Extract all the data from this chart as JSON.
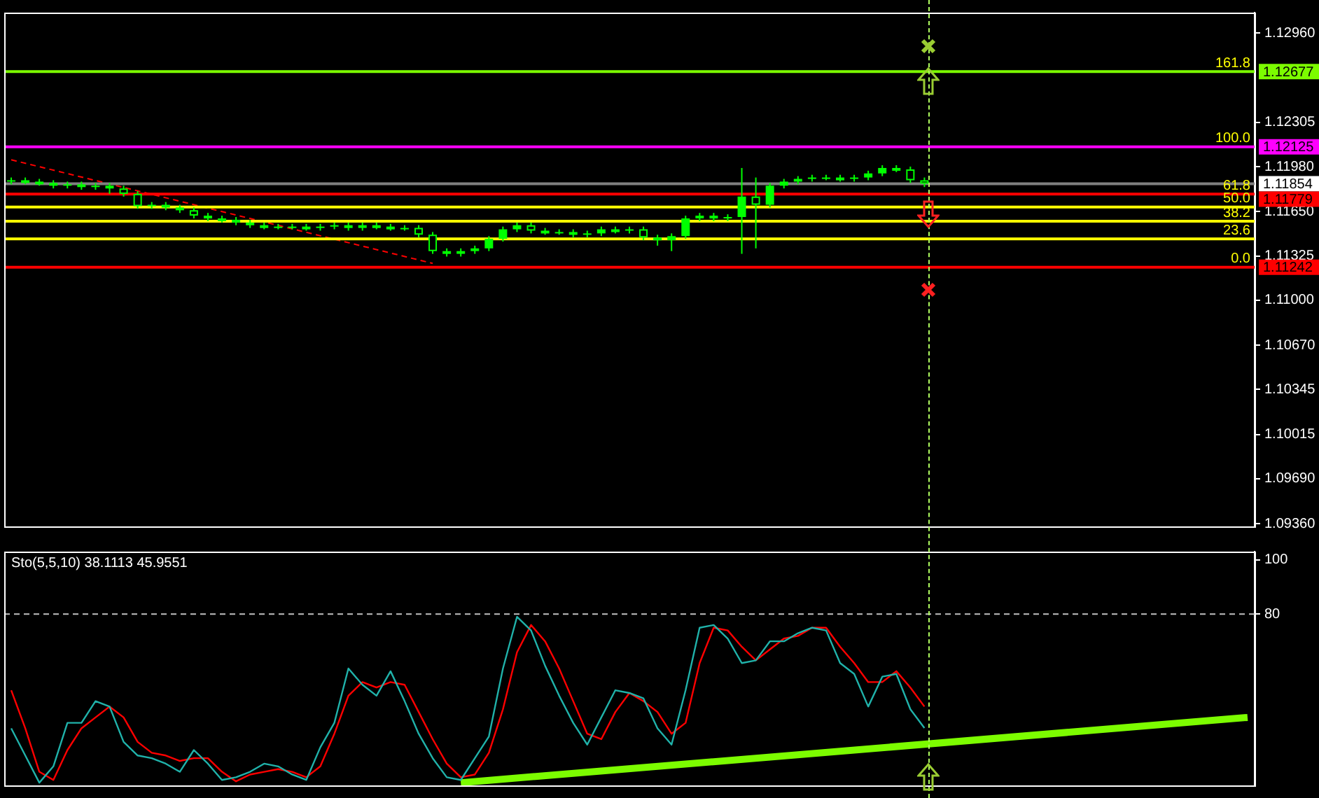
{
  "chart_data": [
    {
      "type": "candlestick",
      "tick_labels": "y",
      "categories": [
        null,
        null,
        null,
        null,
        null,
        null,
        null,
        null,
        null,
        null,
        null,
        null,
        null,
        null,
        null,
        null,
        null,
        null,
        null,
        null,
        null,
        null,
        null,
        null,
        null,
        null,
        null,
        null,
        null,
        null,
        null,
        null,
        null,
        null,
        null,
        null,
        null,
        null,
        null,
        null,
        null,
        null,
        null,
        null,
        null,
        null,
        null,
        null,
        null,
        null,
        null,
        null,
        null,
        null,
        null,
        null,
        null,
        null,
        null,
        null,
        null,
        null,
        null,
        null,
        null,
        null,
        null,
        null,
        null,
        null,
        null,
        null,
        null,
        null,
        null,
        null,
        null,
        null,
        null,
        null,
        null,
        null,
        null,
        null,
        null,
        null,
        null,
        null,
        null
      ],
      "ylim": [
        1.0934,
        1.1311
      ],
      "yticks": [
        {
          "value": 1.1296,
          "label": "1.12960"
        },
        {
          "value": 1.12305,
          "label": "1.12305"
        },
        {
          "value": 1.1198,
          "label": "1.11980"
        },
        {
          "value": 1.1165,
          "label": "1.11650"
        },
        {
          "value": 1.11325,
          "label": "1.11325"
        },
        {
          "value": 1.11,
          "label": "1.11000"
        },
        {
          "value": 1.1067,
          "label": "1.10670"
        },
        {
          "value": 1.10345,
          "label": "1.10345"
        },
        {
          "value": 1.10015,
          "label": "1.10015"
        },
        {
          "value": 1.0969,
          "label": "1.09690"
        },
        {
          "value": 1.0936,
          "label": "1.09360"
        }
      ],
      "series": [
        {
          "color": "#00ff00",
          "ohlc": [
            [
              1.1187,
              1.119,
              1.1185,
              1.1188
            ],
            [
              1.1188,
              1.119,
              1.1185,
              1.1187
            ],
            [
              1.1187,
              1.1189,
              1.1184,
              1.1186
            ],
            [
              1.1186,
              1.1188,
              1.1182,
              1.1184
            ],
            [
              1.1184,
              1.1187,
              1.1182,
              1.1185
            ],
            [
              1.1185,
              1.1187,
              1.1181,
              1.1183
            ],
            [
              1.1183,
              1.1186,
              1.1181,
              1.1184
            ],
            [
              1.1184,
              1.1186,
              1.1178,
              1.1182
            ],
            [
              1.1182,
              1.1184,
              1.1176,
              1.1178
            ],
            [
              1.1178,
              1.118,
              1.1167,
              1.1169
            ],
            [
              1.1169,
              1.1172,
              1.1167,
              1.117
            ],
            [
              1.117,
              1.1172,
              1.1166,
              1.1168
            ],
            [
              1.1168,
              1.117,
              1.1164,
              1.1166
            ],
            [
              1.1166,
              1.1168,
              1.116,
              1.1162
            ],
            [
              1.1162,
              1.1164,
              1.1158,
              1.116
            ],
            [
              1.116,
              1.1162,
              1.1157,
              1.1159
            ],
            [
              1.1159,
              1.1161,
              1.1155,
              1.1157
            ],
            [
              1.1157,
              1.1159,
              1.1153,
              1.1155
            ],
            [
              1.1155,
              1.1157,
              1.1152,
              1.1154
            ],
            [
              1.1154,
              1.1156,
              1.1152,
              1.1154
            ],
            [
              1.1154,
              1.1156,
              1.1152,
              1.1154
            ],
            [
              1.1154,
              1.1156,
              1.1151,
              1.1153
            ],
            [
              1.1153,
              1.1156,
              1.1151,
              1.1154
            ],
            [
              1.1154,
              1.1157,
              1.1152,
              1.1155
            ],
            [
              1.1155,
              1.1157,
              1.1151,
              1.1153
            ],
            [
              1.1153,
              1.1157,
              1.1151,
              1.1155
            ],
            [
              1.1155,
              1.1157,
              1.1152,
              1.1154
            ],
            [
              1.1154,
              1.1156,
              1.1151,
              1.1153
            ],
            [
              1.1153,
              1.1155,
              1.1151,
              1.1153
            ],
            [
              1.1153,
              1.1155,
              1.1146,
              1.1148
            ],
            [
              1.1148,
              1.115,
              1.1134,
              1.1136
            ],
            [
              1.1136,
              1.1138,
              1.1132,
              1.1134
            ],
            [
              1.1134,
              1.1138,
              1.1132,
              1.1136
            ],
            [
              1.1136,
              1.114,
              1.1134,
              1.1138
            ],
            [
              1.1138,
              1.1147,
              1.1136,
              1.1145
            ],
            [
              1.1145,
              1.1154,
              1.1143,
              1.1152
            ],
            [
              1.1152,
              1.1157,
              1.115,
              1.1155
            ],
            [
              1.1155,
              1.1157,
              1.1149,
              1.1151
            ],
            [
              1.1151,
              1.1153,
              1.1148,
              1.115
            ],
            [
              1.115,
              1.1152,
              1.1148,
              1.115
            ],
            [
              1.115,
              1.1152,
              1.1146,
              1.1148
            ],
            [
              1.1148,
              1.1151,
              1.1146,
              1.1149
            ],
            [
              1.1149,
              1.1154,
              1.1147,
              1.1152
            ],
            [
              1.1152,
              1.1154,
              1.1149,
              1.1151
            ],
            [
              1.1151,
              1.1154,
              1.1149,
              1.1152
            ],
            [
              1.1152,
              1.1154,
              1.1144,
              1.1146
            ],
            [
              1.1146,
              1.1148,
              1.114,
              1.1144
            ],
            [
              1.1144,
              1.1149,
              1.1136,
              1.1147
            ],
            [
              1.1147,
              1.1162,
              1.1145,
              1.116
            ],
            [
              1.116,
              1.1164,
              1.1158,
              1.1162
            ],
            [
              1.1162,
              1.1164,
              1.1158,
              1.116
            ],
            [
              1.116,
              1.1163,
              1.1158,
              1.1161
            ],
            [
              1.1161,
              1.1197,
              1.1134,
              1.1176
            ],
            [
              1.1176,
              1.119,
              1.1138,
              1.117
            ],
            [
              1.117,
              1.1186,
              1.1168,
              1.1184
            ],
            [
              1.1184,
              1.1189,
              1.1182,
              1.1187
            ],
            [
              1.1187,
              1.1191,
              1.1185,
              1.1189
            ],
            [
              1.1189,
              1.1192,
              1.1187,
              1.119
            ],
            [
              1.119,
              1.1192,
              1.1188,
              1.119
            ],
            [
              1.119,
              1.1192,
              1.1187,
              1.1189
            ],
            [
              1.1189,
              1.1192,
              1.1187,
              1.119
            ],
            [
              1.119,
              1.1195,
              1.1188,
              1.1193
            ],
            [
              1.1193,
              1.1199,
              1.1191,
              1.1197
            ],
            [
              1.1197,
              1.1199,
              1.1194,
              1.1196
            ],
            [
              1.1196,
              1.1198,
              1.1186,
              1.1188
            ],
            [
              1.1188,
              1.119,
              1.1183,
              1.11854
            ],
            null,
            null,
            null,
            null,
            null,
            null,
            null,
            null,
            null,
            null,
            null,
            null,
            null,
            null,
            null,
            null,
            null,
            null,
            null,
            null,
            null,
            null,
            null
          ]
        },
        {
          "type": "line",
          "color": "#ff0000",
          "line_style": "dashed",
          "values": [
            1.1203,
            null,
            null,
            null,
            null,
            null,
            null,
            null,
            null,
            null,
            null,
            null,
            null,
            null,
            null,
            null,
            null,
            null,
            null,
            null,
            null,
            null,
            null,
            null,
            null,
            null,
            null,
            null,
            null,
            null,
            1.1127,
            null,
            null,
            null,
            null,
            null,
            null,
            null,
            null,
            null,
            null,
            null,
            null,
            null,
            null,
            null,
            null,
            null,
            null,
            null,
            null,
            null,
            null,
            null,
            null,
            null,
            null,
            null,
            null,
            null,
            null,
            null,
            null,
            null,
            null,
            null,
            null,
            null,
            null,
            null,
            null,
            null,
            null,
            null,
            null,
            null,
            null,
            null,
            null,
            null,
            null,
            null,
            null,
            null,
            null,
            null,
            null,
            null,
            null
          ]
        }
      ],
      "ref_lines": [
        {
          "axis": "y",
          "value": 1.12677,
          "label": "1.12677",
          "color": "#7cfc00"
        },
        {
          "axis": "y",
          "value": 1.12125,
          "label": "1.12125",
          "color": "#ff00ff"
        },
        {
          "axis": "y",
          "value": 1.11779,
          "label": "1.11779",
          "color": "#ff0000"
        },
        {
          "axis": "y",
          "value": 1.11684,
          "color": "#ffff00"
        },
        {
          "axis": "y",
          "value": 1.11579,
          "color": "#ffff00"
        },
        {
          "axis": "y",
          "value": 1.1145,
          "color": "#ffff00"
        },
        {
          "axis": "y",
          "value": 1.11242,
          "label": "1.11242",
          "color": "#ff0000"
        },
        {
          "axis": "y",
          "value": 1.11854,
          "label": "1.11854",
          "color": "#808080"
        }
      ],
      "annotations": [
        "161.8",
        "100.0",
        "61.8",
        "50.0",
        "38.2",
        "23.6",
        "0.0"
      ]
    },
    {
      "type": "line",
      "tick_labels": "y",
      "title": "Sto(5,5,10) 38.1113 45.9551",
      "categories": [
        null,
        null,
        null,
        null,
        null,
        null,
        null,
        null,
        null,
        null,
        null,
        null,
        null,
        null,
        null,
        null,
        null,
        null,
        null,
        null,
        null,
        null,
        null,
        null,
        null,
        null,
        null,
        null,
        null,
        null,
        null,
        null,
        null,
        null,
        null,
        null,
        null,
        null,
        null,
        null,
        null,
        null,
        null,
        null,
        null,
        null,
        null,
        null,
        null,
        null,
        null,
        null,
        null,
        null,
        null,
        null,
        null,
        null,
        null,
        null,
        null,
        null,
        null,
        null,
        null,
        null,
        null,
        null,
        null,
        null,
        null,
        null,
        null,
        null,
        null,
        null,
        null,
        null,
        null,
        null,
        null,
        null,
        null,
        null,
        null,
        null,
        null,
        null,
        null
      ],
      "ylim": [
        17,
        103
      ],
      "yticks": [
        100,
        80
      ],
      "series": [
        {
          "color": "#20b2aa",
          "values": [
            38,
            28,
            18,
            24,
            40,
            40,
            48,
            46,
            33,
            28,
            27,
            25,
            22,
            30,
            25,
            19,
            20,
            22,
            25,
            24,
            21,
            19,
            31,
            40,
            60,
            54,
            50,
            59,
            48,
            36,
            27,
            20,
            19,
            27,
            35,
            60,
            79,
            74,
            61,
            50,
            40,
            32,
            42,
            52,
            51,
            49,
            38,
            32,
            52,
            75,
            76,
            71,
            62,
            63,
            70,
            70,
            73,
            75,
            74,
            62,
            58,
            46,
            57,
            58,
            45,
            38.1,
            null,
            null,
            null,
            null,
            null,
            null,
            null,
            null,
            null,
            null,
            null,
            null,
            null,
            null,
            null,
            null,
            null,
            null,
            null,
            null,
            null,
            null,
            null
          ]
        },
        {
          "color": "#ff0000",
          "values": [
            52,
            38,
            22,
            19,
            30,
            38,
            42,
            46,
            42,
            33,
            29,
            28,
            26,
            27,
            27,
            22,
            18.5,
            21,
            22,
            23,
            22,
            20,
            24,
            36,
            50,
            55,
            53,
            55,
            54,
            44,
            34,
            25,
            20,
            21,
            29,
            45,
            66,
            76,
            70,
            60,
            48,
            36,
            34,
            44,
            51,
            48,
            44,
            36,
            40,
            62,
            75,
            74,
            68,
            63,
            67,
            71,
            72,
            75,
            75,
            68,
            62,
            55,
            55,
            59,
            53,
            46,
            null,
            null,
            null,
            null,
            null,
            null,
            null,
            null,
            null,
            null,
            null,
            null,
            null,
            null,
            null,
            null,
            null,
            null,
            null,
            null,
            null,
            null,
            null
          ]
        },
        {
          "type": "line",
          "color": "#7cfc00",
          "values": [
            null,
            null,
            null,
            null,
            null,
            null,
            null,
            null,
            null,
            null,
            null,
            null,
            null,
            null,
            null,
            null,
            null,
            null,
            null,
            null,
            null,
            null,
            null,
            null,
            null,
            null,
            null,
            null,
            null,
            null,
            null,
            null,
            18,
            null,
            null,
            null,
            null,
            null,
            null,
            null,
            null,
            null,
            null,
            null,
            null,
            null,
            null,
            null,
            null,
            null,
            null,
            null,
            null,
            null,
            null,
            null,
            null,
            null,
            null,
            null,
            null,
            null,
            null,
            null,
            null,
            null,
            null,
            null,
            null,
            null,
            null,
            null,
            null,
            null,
            null,
            null,
            null,
            null,
            null,
            null,
            null,
            null,
            null,
            null,
            null,
            null,
            null,
            null,
            42
          ]
        }
      ],
      "ref_lines": [
        {
          "axis": "y",
          "value": 80,
          "color": "#c0c0c0",
          "line_style": "dashed"
        }
      ]
    }
  ]
}
